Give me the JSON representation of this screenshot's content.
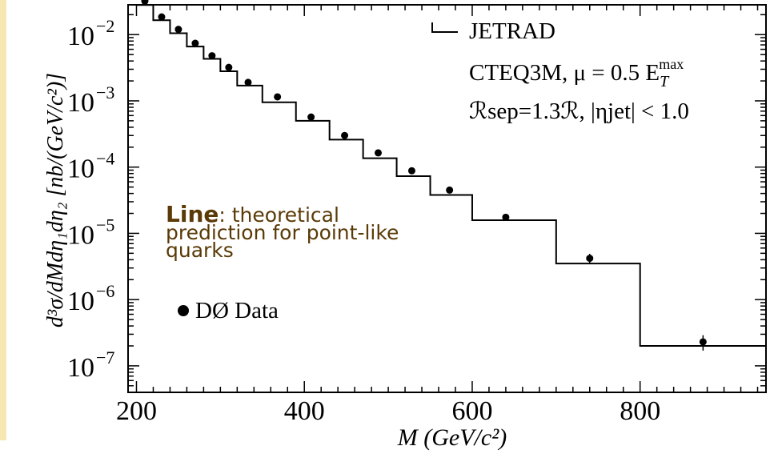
{
  "chart_data": {
    "type": "line",
    "title": "",
    "xlabel": "M (GeV/c²)",
    "ylabel": "d³σ/dMdη₁dη₂ [nb/(GeV/c²)]",
    "xlim": [
      190,
      950
    ],
    "ylim_log10": [
      -7.4,
      -1.55
    ],
    "y_scale": "log",
    "x_ticks": [
      200,
      400,
      600,
      800
    ],
    "y_ticks_exponents": [
      -2,
      -3,
      -4,
      -5,
      -6,
      -7
    ],
    "y_tick_base": "10",
    "legend": {
      "line_label": "JETRAD",
      "line_sub1": "CTEQ3M, μ = 0.5 E",
      "line_sub1_sub": "T",
      "line_sub1_sup": "max",
      "line_sub2": "ℛsep=1.3ℛ,  |ηjet| < 1.0",
      "data_label": "DØ Data"
    },
    "series": [
      {
        "name": "JETRAD",
        "kind": "step",
        "bin_edges": [
          200,
          220,
          240,
          260,
          280,
          300,
          320,
          350,
          390,
          430,
          470,
          510,
          550,
          600,
          700,
          800,
          950
        ],
        "values": [
          0.028,
          0.0165,
          0.0105,
          0.0066,
          0.0043,
          0.0028,
          0.0017,
          0.00095,
          0.0005,
          0.00026,
          0.000136,
          7.3e-05,
          3.8e-05,
          1.58e-05,
          3.5e-06,
          2e-07
        ]
      },
      {
        "name": "DØ Data",
        "kind": "points",
        "x": [
          210,
          230,
          250,
          270,
          290,
          310,
          333,
          368,
          408,
          448,
          488,
          528,
          573,
          640,
          740,
          875
        ],
        "y": [
          0.032,
          0.0185,
          0.012,
          0.0074,
          0.0048,
          0.0032,
          0.0019,
          0.00115,
          0.00057,
          0.0003,
          0.000164,
          8.8e-05,
          4.5e-05,
          1.75e-05,
          4.2e-06,
          2.3e-07
        ],
        "err_lo": [
          0,
          0,
          0,
          0,
          0,
          0,
          0,
          0,
          0,
          0,
          0,
          0,
          0,
          1.5e-06,
          7e-07,
          6e-08
        ],
        "err_hi": [
          0,
          0,
          0,
          0,
          0,
          0,
          0,
          0,
          0,
          0,
          0,
          0,
          0,
          1.5e-06,
          7e-07,
          6e-08
        ]
      }
    ],
    "grid": false
  },
  "annotation": {
    "bold": "Line",
    "rest": ": theoretical prediction for point-like quarks"
  }
}
